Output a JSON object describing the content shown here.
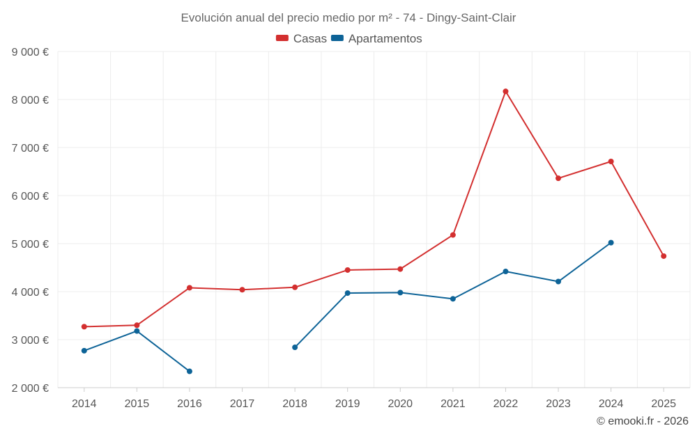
{
  "chart_data": {
    "type": "line",
    "title": "Evolución anual del precio medio por m² - 74 - Dingy-Saint-Clair",
    "categories": [
      "2014",
      "2015",
      "2016",
      "2017",
      "2018",
      "2019",
      "2020",
      "2021",
      "2022",
      "2023",
      "2024",
      "2025"
    ],
    "ylim": [
      2000,
      9000
    ],
    "yticks": [
      2000,
      3000,
      4000,
      5000,
      6000,
      7000,
      8000,
      9000
    ],
    "ytick_labels": [
      "2 000 €",
      "3 000 €",
      "4 000 €",
      "5 000 €",
      "6 000 €",
      "7 000 €",
      "8 000 €",
      "9 000 €"
    ],
    "legend_position": "top-center",
    "grid": true,
    "series": [
      {
        "name": "Casas",
        "color": "#d32f2f",
        "values": [
          3270,
          3300,
          4080,
          4040,
          4090,
          4450,
          4470,
          5180,
          8170,
          6360,
          6710,
          4740
        ]
      },
      {
        "name": "Apartamentos",
        "color": "#0d6397",
        "values": [
          2770,
          3180,
          2340,
          null,
          2840,
          3970,
          3980,
          3850,
          4420,
          4210,
          5020,
          null
        ]
      }
    ]
  },
  "footer": {
    "copyright": "© emooki.fr - 2026"
  }
}
